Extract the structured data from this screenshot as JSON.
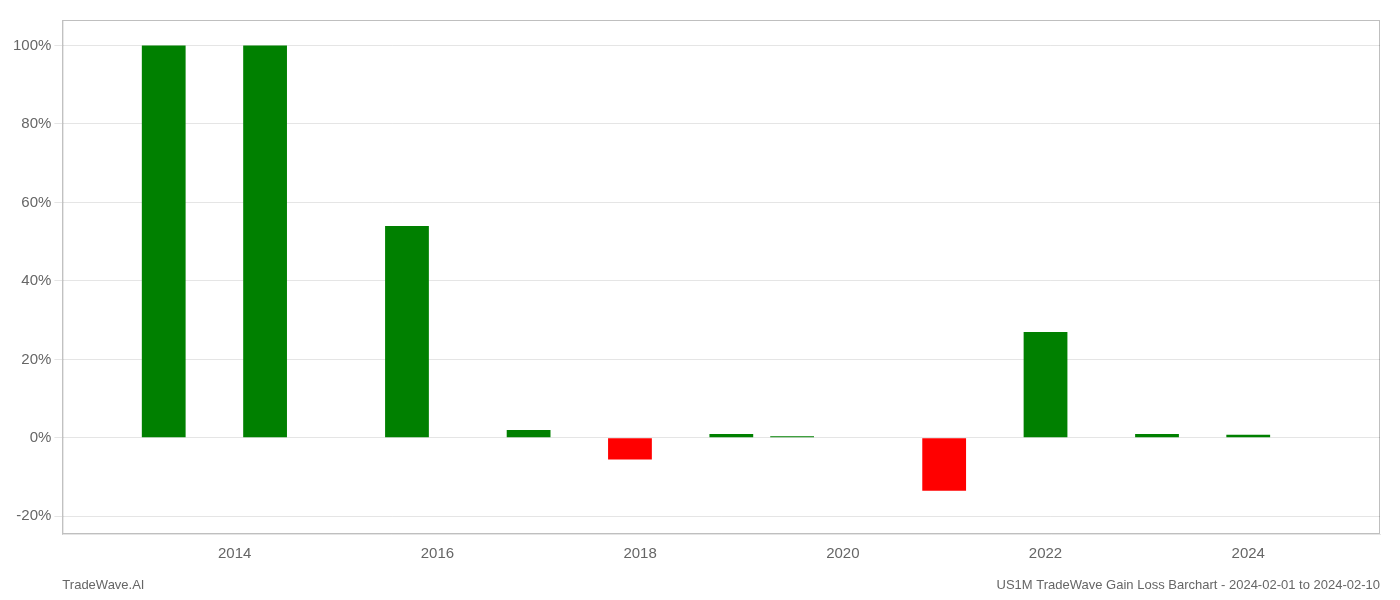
{
  "chart_data": {
    "type": "bar",
    "x": [
      2013.3,
      2014.3,
      2015.7,
      2016.9,
      2017.9,
      2018.9,
      2019.5,
      2021.0,
      2022.0,
      2023.1,
      2024.0
    ],
    "values": [
      1.0,
      1.0,
      0.54,
      0.02,
      -0.055,
      0.01,
      0.004,
      -0.135,
      0.27,
      0.01,
      0.008
    ],
    "colors": [
      "#008000",
      "#008000",
      "#008000",
      "#008000",
      "#ff0000",
      "#008000",
      "#008000",
      "#ff0000",
      "#008000",
      "#008000",
      "#008000"
    ],
    "xlim": [
      2012.3,
      2025.3
    ],
    "xticks": [
      2014,
      2016,
      2018,
      2020,
      2022,
      2024
    ],
    "ylim": [
      -0.245,
      1.065
    ],
    "yticks": [
      {
        "value": -0.2,
        "label": "-20%"
      },
      {
        "value": 0.0,
        "label": "0%"
      },
      {
        "value": 0.2,
        "label": "20%"
      },
      {
        "value": 0.4,
        "label": "40%"
      },
      {
        "value": 0.6,
        "label": "60%"
      },
      {
        "value": 0.8,
        "label": "80%"
      },
      {
        "value": 1.0,
        "label": "100%"
      }
    ],
    "grid": true,
    "annotations": [
      "TradeWave.AI",
      "US1M TradeWave Gain Loss Barchart - 2024-02-01 to 2024-02-10"
    ]
  }
}
